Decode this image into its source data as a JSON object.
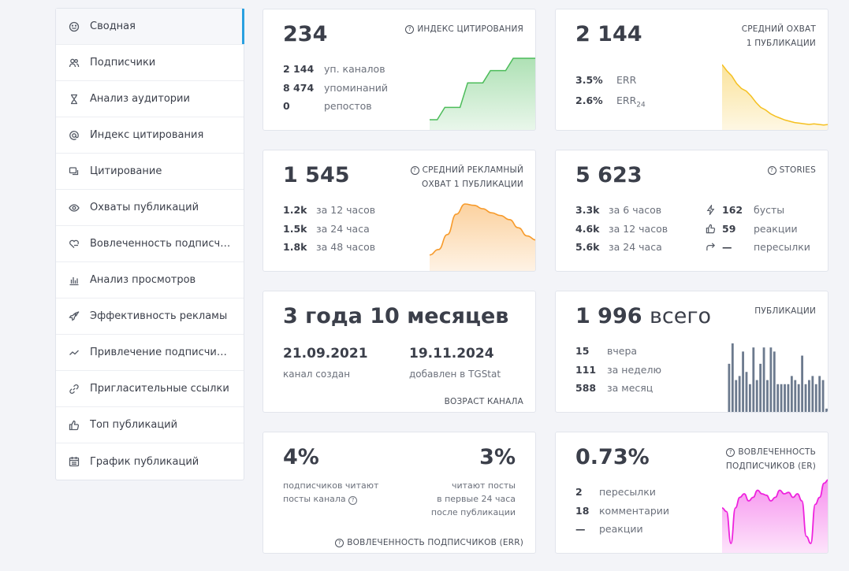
{
  "sidebar": {
    "items": [
      {
        "label": "Сводная",
        "icon": "smiley-icon",
        "active": true
      },
      {
        "label": "Подписчики",
        "icon": "users-icon"
      },
      {
        "label": "Анализ аудитории",
        "icon": "hourglass-icon"
      },
      {
        "label": "Индекс цитирования",
        "icon": "at-icon"
      },
      {
        "label": "Цитирование",
        "icon": "quote-icon"
      },
      {
        "label": "Охваты публикаций",
        "icon": "eye-icon"
      },
      {
        "label": "Вовлеченность подписчи...",
        "icon": "heart-hand-icon"
      },
      {
        "label": "Анализ просмотров",
        "icon": "bar-chart-icon"
      },
      {
        "label": "Эффективность рекламы",
        "icon": "rocket-icon"
      },
      {
        "label": "Привлечение подписчиков",
        "icon": "trend-icon"
      },
      {
        "label": "Пригласительные ссылки",
        "icon": "link-icon"
      },
      {
        "label": "Топ публикаций",
        "icon": "thumbs-up-icon"
      },
      {
        "label": "График публикаций",
        "icon": "calendar-icon"
      }
    ]
  },
  "citation": {
    "value": "234",
    "title": "ИНДЕКС ЦИТИРОВАНИЯ",
    "rows": [
      {
        "v": "2 144",
        "l": "уп. каналов"
      },
      {
        "v": "8 474",
        "l": "упоминаний"
      },
      {
        "v": "0",
        "l": "репостов"
      }
    ],
    "color": "#4cbc5a"
  },
  "reach": {
    "value": "2 144",
    "title1": "СРЕДНИЙ ОХВАТ",
    "title2": "1 ПУБЛИКАЦИИ",
    "rows": [
      {
        "v": "3.5%",
        "l": "ERR"
      },
      {
        "v": "2.6%",
        "l": "ERR",
        "sub": "24"
      }
    ],
    "color": "#f5c020"
  },
  "ad_reach": {
    "value": "1 545",
    "title1": "СРЕДНИЙ РЕКЛАМНЫЙ",
    "title2": "ОХВАТ 1 ПУБЛИКАЦИИ",
    "rows": [
      {
        "v": "1.2k",
        "l": "за 12 часов"
      },
      {
        "v": "1.5k",
        "l": "за 24 часа"
      },
      {
        "v": "1.8k",
        "l": "за 48 часов"
      }
    ],
    "color": "#f79a2a"
  },
  "stories": {
    "value": "5 623",
    "title": "STORIES",
    "rows_left": [
      {
        "v": "3.3k",
        "l": "за 6 часов"
      },
      {
        "v": "4.6k",
        "l": "за 12 часов"
      },
      {
        "v": "5.6k",
        "l": "за 24 часа"
      }
    ],
    "rows_right": [
      {
        "icon": "bolt-icon",
        "v": "162",
        "l": "бусты"
      },
      {
        "icon": "thumbs-up-icon",
        "v": "59",
        "l": "реакции"
      },
      {
        "icon": "share-icon",
        "v": "—",
        "l": "пересылки"
      }
    ]
  },
  "age": {
    "value": "3 года 10 месяцев",
    "created_date": "21.09.2021",
    "created_label": "канал создан",
    "added_date": "19.11.2024",
    "added_label": "добавлен в TGStat",
    "footer": "ВОЗРАСТ КАНАЛА"
  },
  "posts": {
    "value": "1 996",
    "value_suffix": "всего",
    "title": "ПУБЛИКАЦИИ",
    "rows": [
      {
        "v": "15",
        "l": "вчера"
      },
      {
        "v": "111",
        "l": "за неделю"
      },
      {
        "v": "588",
        "l": "за месяц"
      }
    ],
    "color": "#6c7a8e"
  },
  "err": {
    "left_value": "4%",
    "left_text1": "подписчиков читают",
    "left_text2": "посты канала",
    "right_value": "3%",
    "right_text1": "читают посты",
    "right_text2": "в первые 24 часа",
    "right_text3": "после публикации",
    "footer": "ВОВЛЕЧЕННОСТЬ ПОДПИСЧИКОВ (ERR)"
  },
  "engagement": {
    "value": "0.73%",
    "title1": "ВОВЛЕЧЕННОСТЬ",
    "title2": "ПОДПИСЧИКОВ (ER)",
    "rows": [
      {
        "v": "2",
        "l": "пересылки"
      },
      {
        "v": "18",
        "l": "комментарии"
      },
      {
        "v": "—",
        "l": "реакции"
      }
    ],
    "color": "#ee22dd"
  },
  "chart_data": [
    {
      "type": "area",
      "name": "citation-trend",
      "values": [
        0,
        0,
        10,
        10,
        10,
        30,
        30,
        30,
        40,
        40,
        40,
        50,
        50,
        50,
        50
      ]
    },
    {
      "type": "area",
      "name": "reach-trend",
      "values": [
        100,
        90,
        82,
        70,
        62,
        58,
        50,
        40,
        32,
        28,
        22,
        18,
        15,
        12,
        10,
        8,
        7,
        6,
        5,
        6,
        5,
        4,
        5
      ]
    },
    {
      "type": "area",
      "name": "ad-reach-trend",
      "values": [
        20,
        28,
        50,
        80,
        95,
        93,
        88,
        82,
        78,
        72,
        60,
        48,
        42
      ]
    },
    {
      "type": "bar",
      "name": "posts-daily",
      "values": [
        60,
        85,
        40,
        45,
        75,
        50,
        35,
        80,
        40,
        60,
        80,
        40,
        80,
        75,
        35,
        35,
        35,
        35,
        45,
        40,
        35,
        70,
        35,
        40,
        45,
        35,
        45,
        40,
        5
      ]
    },
    {
      "type": "line",
      "name": "er-trend",
      "values": [
        60,
        55,
        10,
        60,
        75,
        80,
        70,
        75,
        85,
        80,
        78,
        70,
        75,
        85,
        80,
        82,
        75,
        80,
        70,
        20,
        10,
        65,
        75,
        95,
        100
      ]
    }
  ]
}
